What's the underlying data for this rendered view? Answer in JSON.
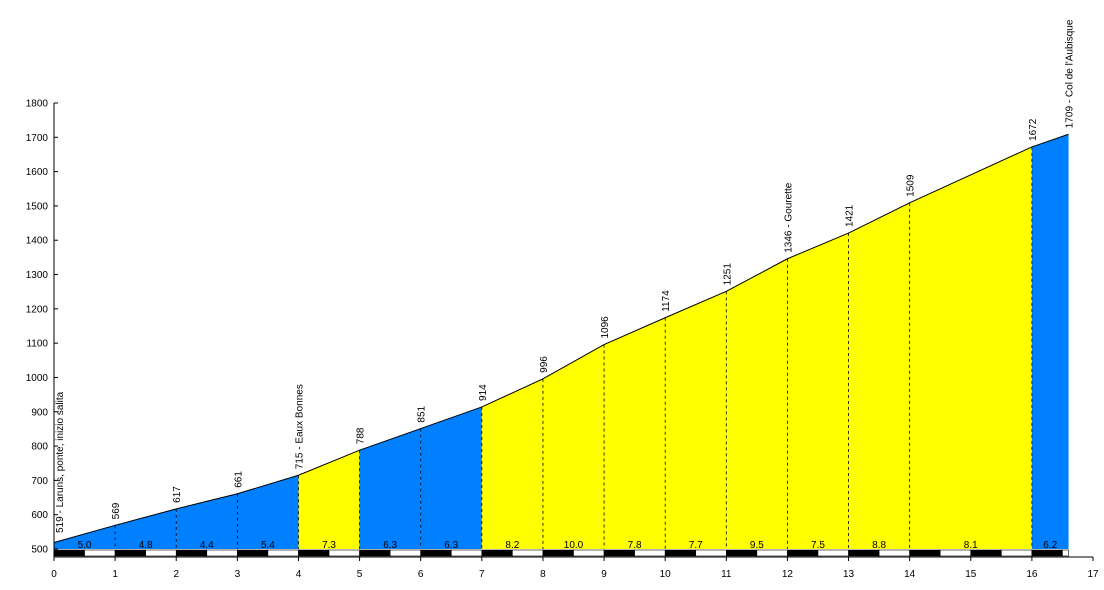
{
  "chart_data": {
    "type": "area",
    "title": "",
    "xlabel": "",
    "ylabel": "",
    "xlim": [
      0,
      17
    ],
    "ylim": [
      500,
      1800
    ],
    "x_ticks": [
      "0",
      "1",
      "2",
      "3",
      "4",
      "5",
      "6",
      "7",
      "8",
      "9",
      "10",
      "11",
      "12",
      "13",
      "14",
      "15",
      "16",
      "17"
    ],
    "y_ticks": [
      "500",
      "600",
      "700",
      "800",
      "900",
      "1000",
      "1100",
      "1200",
      "1300",
      "1400",
      "1500",
      "1600",
      "1700",
      "1800"
    ],
    "colors": {
      "blue": "#0080ff",
      "yellow": "#ffff00",
      "black": "#000000",
      "white": "#ffffff"
    },
    "profile": [
      {
        "km": 0,
        "alt": 519,
        "label": "519 - Laruns, ponte, inizio salita"
      },
      {
        "km": 1,
        "alt": 569,
        "label": "569"
      },
      {
        "km": 2,
        "alt": 617,
        "label": "617"
      },
      {
        "km": 3,
        "alt": 661,
        "label": "661"
      },
      {
        "km": 4,
        "alt": 715,
        "label": "715 - Eaux Bonnes"
      },
      {
        "km": 5,
        "alt": 788,
        "label": "788"
      },
      {
        "km": 6,
        "alt": 851,
        "label": "851"
      },
      {
        "km": 7,
        "alt": 914,
        "label": "914"
      },
      {
        "km": 8,
        "alt": 996,
        "label": "996"
      },
      {
        "km": 9,
        "alt": 1096,
        "label": "1096"
      },
      {
        "km": 10,
        "alt": 1174,
        "label": "1174"
      },
      {
        "km": 11,
        "alt": 1251,
        "label": "1251"
      },
      {
        "km": 12,
        "alt": 1346,
        "label": "1346 - Gourette"
      },
      {
        "km": 13,
        "alt": 1421,
        "label": "1421"
      },
      {
        "km": 14,
        "alt": 1509,
        "label": "1509"
      },
      {
        "km": 16,
        "alt": 1672,
        "label": "1672"
      },
      {
        "km": 16.6,
        "alt": 1709,
        "label": "1709 - Col de l'Aubisque"
      }
    ],
    "segments": [
      {
        "start": 0,
        "end": 1,
        "gradient": "5.0",
        "color": "blue"
      },
      {
        "start": 1,
        "end": 2,
        "gradient": "4.8",
        "color": "blue"
      },
      {
        "start": 2,
        "end": 3,
        "gradient": "4.4",
        "color": "blue"
      },
      {
        "start": 3,
        "end": 4,
        "gradient": "5.4",
        "color": "blue"
      },
      {
        "start": 4,
        "end": 5,
        "gradient": "7.3",
        "color": "yellow"
      },
      {
        "start": 5,
        "end": 6,
        "gradient": "6.3",
        "color": "blue"
      },
      {
        "start": 6,
        "end": 7,
        "gradient": "6.3",
        "color": "blue"
      },
      {
        "start": 7,
        "end": 8,
        "gradient": "8.2",
        "color": "yellow"
      },
      {
        "start": 8,
        "end": 9,
        "gradient": "10.0",
        "color": "yellow"
      },
      {
        "start": 9,
        "end": 10,
        "gradient": "7.8",
        "color": "yellow"
      },
      {
        "start": 10,
        "end": 11,
        "gradient": "7.7",
        "color": "yellow"
      },
      {
        "start": 11,
        "end": 12,
        "gradient": "9.5",
        "color": "yellow"
      },
      {
        "start": 12,
        "end": 13,
        "gradient": "7.5",
        "color": "yellow"
      },
      {
        "start": 13,
        "end": 14,
        "gradient": "8.8",
        "color": "yellow"
      },
      {
        "start": 14,
        "end": 16,
        "gradient": "8.1",
        "color": "yellow"
      },
      {
        "start": 16,
        "end": 16.6,
        "gradient": "6.2",
        "color": "blue"
      }
    ]
  }
}
